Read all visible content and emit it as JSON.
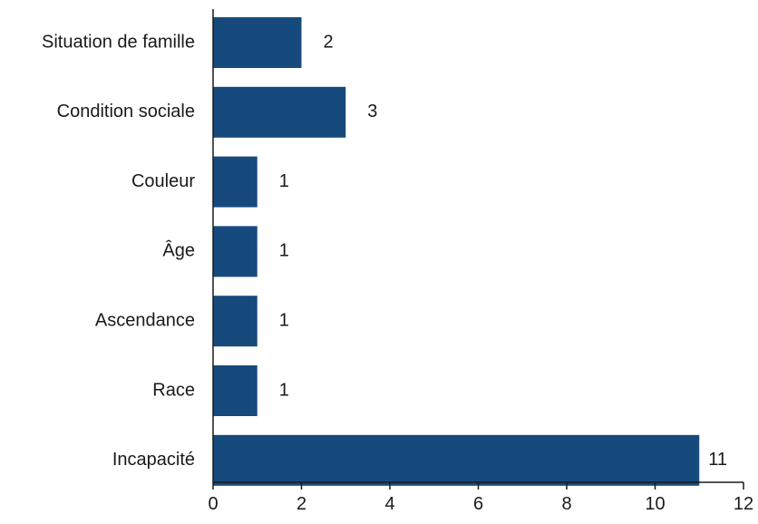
{
  "chart_data": {
    "type": "bar",
    "orientation": "horizontal",
    "categories": [
      "Situation de famille",
      "Condition sociale",
      "Couleur",
      "Âge",
      "Ascendance",
      "Race",
      "Incapacité"
    ],
    "values": [
      2,
      3,
      1,
      1,
      1,
      1,
      11
    ],
    "xlim": [
      0,
      12
    ],
    "xticks": [
      0,
      2,
      4,
      6,
      8,
      10,
      12
    ],
    "title": "",
    "xlabel": "",
    "ylabel": "",
    "grid": false,
    "bar_color": "#174a7c"
  }
}
